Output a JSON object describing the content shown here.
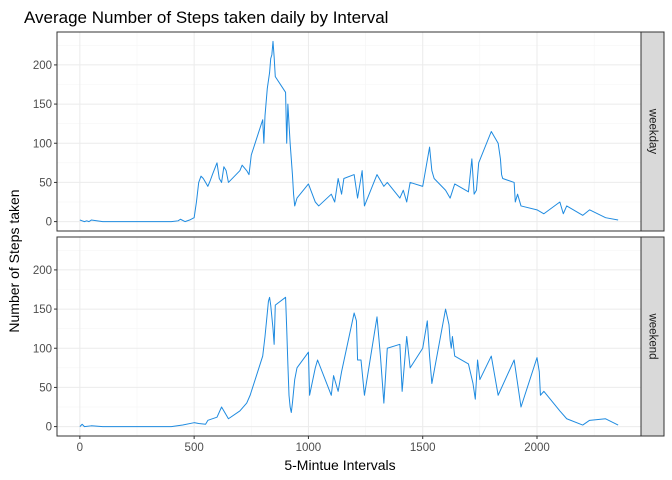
{
  "chart_data": {
    "type": "line",
    "title": "Average Number of Steps taken daily by Interval",
    "xlabel": "5-Mintue Intervals",
    "ylabel": "Number of Steps taken",
    "xlim": [
      -100,
      2455
    ],
    "ylim": [
      -12,
      242
    ],
    "x_ticks": [
      0,
      500,
      1000,
      1500,
      2000
    ],
    "x_tick_labels": [
      "0",
      "500",
      "1000",
      "1500",
      "2000"
    ],
    "y_ticks": [
      0,
      50,
      100,
      150,
      200
    ],
    "y_tick_labels": [
      "0",
      "50",
      "100",
      "150",
      "200"
    ],
    "grid": true,
    "line_color": "#1f8be0",
    "series": [
      {
        "name": "weekday",
        "x": [
          0,
          10,
          20,
          30,
          40,
          50,
          100,
          200,
          300,
          400,
          430,
          440,
          460,
          480,
          500,
          510,
          520,
          530,
          540,
          550,
          560,
          570,
          580,
          600,
          610,
          620,
          630,
          640,
          650,
          700,
          710,
          730,
          740,
          750,
          800,
          805,
          810,
          820,
          830,
          835,
          840,
          845,
          850,
          855,
          900,
          905,
          910,
          915,
          920,
          925,
          930,
          935,
          940,
          945,
          950,
          1000,
          1030,
          1045,
          1100,
          1115,
          1130,
          1145,
          1155,
          1200,
          1215,
          1235,
          1245,
          1300,
          1330,
          1345,
          1400,
          1415,
          1430,
          1445,
          1500,
          1530,
          1540,
          1545,
          1550,
          1600,
          1620,
          1640,
          1700,
          1715,
          1725,
          1735,
          1745,
          1800,
          1830,
          1840,
          1845,
          1850,
          1900,
          1905,
          1915,
          1930,
          2000,
          2030,
          2100,
          2115,
          2130,
          2200,
          2230,
          2300,
          2355
        ],
        "y": [
          2,
          1,
          0,
          1,
          0,
          2,
          0,
          0,
          0,
          0,
          1,
          3,
          0,
          2,
          5,
          25,
          50,
          58,
          55,
          50,
          45,
          52,
          60,
          75,
          55,
          50,
          70,
          65,
          50,
          65,
          72,
          65,
          60,
          85,
          130,
          100,
          135,
          170,
          190,
          208,
          213,
          230,
          210,
          185,
          165,
          100,
          150,
          125,
          100,
          80,
          60,
          35,
          20,
          25,
          30,
          48,
          25,
          20,
          35,
          25,
          55,
          35,
          55,
          60,
          30,
          65,
          20,
          60,
          45,
          50,
          30,
          40,
          25,
          50,
          45,
          95,
          65,
          60,
          55,
          40,
          30,
          48,
          38,
          80,
          35,
          40,
          75,
          115,
          100,
          80,
          60,
          55,
          50,
          25,
          35,
          20,
          15,
          10,
          25,
          10,
          20,
          8,
          15,
          5,
          2
        ]
      },
      {
        "name": "weekend",
        "x": [
          0,
          10,
          20,
          50,
          100,
          200,
          300,
          400,
          450,
          500,
          520,
          550,
          560,
          600,
          620,
          650,
          700,
          730,
          745,
          800,
          810,
          820,
          825,
          830,
          835,
          845,
          850,
          855,
          900,
          905,
          910,
          915,
          920,
          925,
          930,
          935,
          940,
          950,
          1000,
          1005,
          1030,
          1040,
          1100,
          1110,
          1130,
          1145,
          1200,
          1210,
          1215,
          1230,
          1245,
          1300,
          1315,
          1330,
          1345,
          1400,
          1410,
          1430,
          1445,
          1500,
          1520,
          1530,
          1540,
          1600,
          1615,
          1620,
          1625,
          1630,
          1640,
          1700,
          1720,
          1730,
          1740,
          1750,
          1800,
          1830,
          1900,
          1930,
          2000,
          2010,
          2015,
          2030,
          2100,
          2130,
          2200,
          2230,
          2300,
          2355
        ],
        "y": [
          0,
          3,
          0,
          1,
          0,
          0,
          0,
          0,
          2,
          5,
          4,
          3,
          8,
          12,
          25,
          10,
          20,
          30,
          40,
          90,
          115,
          145,
          160,
          165,
          155,
          125,
          105,
          155,
          165,
          125,
          80,
          40,
          25,
          18,
          30,
          45,
          60,
          75,
          95,
          40,
          75,
          85,
          40,
          65,
          45,
          70,
          145,
          135,
          85,
          85,
          40,
          140,
          90,
          30,
          100,
          105,
          45,
          115,
          75,
          100,
          135,
          90,
          55,
          150,
          130,
          110,
          100,
          115,
          90,
          80,
          55,
          35,
          85,
          60,
          90,
          40,
          85,
          25,
          88,
          70,
          40,
          45,
          20,
          10,
          2,
          8,
          10,
          2
        ]
      }
    ]
  }
}
